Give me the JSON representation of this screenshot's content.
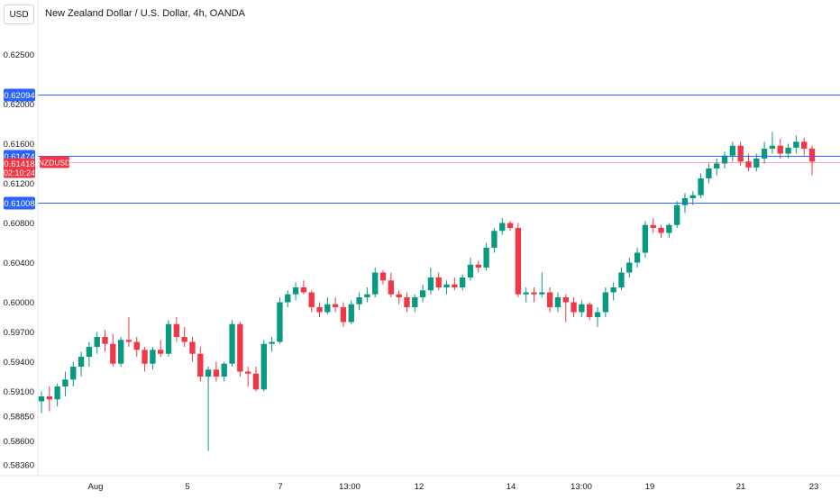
{
  "header": {
    "currency_label": "USD",
    "title": "New Zealand Dollar / U.S. Dollar, 4h, OANDA"
  },
  "chart_data": {
    "type": "candlestick",
    "symbol": "NZDUSD",
    "y_ticks": [
      "0.62500",
      "0.62000",
      "0.61600",
      "0.61200",
      "0.60800",
      "0.60400",
      "0.60000",
      "0.59700",
      "0.59400",
      "0.59100",
      "0.58850",
      "0.58600",
      "0.58360"
    ],
    "x_ticks": [
      "Aug",
      "5",
      "7",
      "13:00",
      "12",
      "14",
      "13:00",
      "19",
      "21",
      "23"
    ],
    "ylim": [
      0.5825,
      0.6305
    ],
    "horizontal_lines": [
      {
        "label": "0.62094",
        "value": 0.62094,
        "color": "#2962ff"
      },
      {
        "label": "0.61474",
        "value": 0.61474,
        "color": "#2962ff"
      },
      {
        "label": "0.61008",
        "value": 0.61008,
        "color": "#2962ff"
      }
    ],
    "current_price": {
      "label": "0.61418",
      "value": 0.61418,
      "countdown": "02:10:24",
      "symbol": "NZDUSD",
      "color": "#f23645"
    },
    "up_color": "#089981",
    "down_color": "#f23645",
    "candles": [
      [
        0.59,
        0.591,
        0.5888,
        0.5905
      ],
      [
        0.5905,
        0.5915,
        0.589,
        0.5902
      ],
      [
        0.5902,
        0.5918,
        0.5895,
        0.5915
      ],
      [
        0.5915,
        0.593,
        0.5905,
        0.5922
      ],
      [
        0.5922,
        0.594,
        0.5915,
        0.5935
      ],
      [
        0.5935,
        0.595,
        0.5925,
        0.5945
      ],
      [
        0.5945,
        0.596,
        0.5935,
        0.5955
      ],
      [
        0.5955,
        0.597,
        0.5948,
        0.5965
      ],
      [
        0.5965,
        0.5972,
        0.595,
        0.5958
      ],
      [
        0.5958,
        0.5968,
        0.5935,
        0.5938
      ],
      [
        0.5938,
        0.5965,
        0.5935,
        0.5962
      ],
      [
        0.5962,
        0.5985,
        0.5955,
        0.596
      ],
      [
        0.596,
        0.5965,
        0.5945,
        0.5952
      ],
      [
        0.5952,
        0.5955,
        0.593,
        0.5938
      ],
      [
        0.5938,
        0.5955,
        0.5932,
        0.5952
      ],
      [
        0.5952,
        0.5962,
        0.5945,
        0.5948
      ],
      [
        0.5948,
        0.5982,
        0.5945,
        0.5978
      ],
      [
        0.5978,
        0.5985,
        0.596,
        0.5965
      ],
      [
        0.5965,
        0.5975,
        0.5955,
        0.596
      ],
      [
        0.596,
        0.5965,
        0.594,
        0.5948
      ],
      [
        0.5948,
        0.5955,
        0.592,
        0.5925
      ],
      [
        0.5925,
        0.5935,
        0.585,
        0.5932
      ],
      [
        0.5932,
        0.594,
        0.592,
        0.5925
      ],
      [
        0.5925,
        0.594,
        0.592,
        0.5938
      ],
      [
        0.5938,
        0.5982,
        0.5935,
        0.5978
      ],
      [
        0.5978,
        0.598,
        0.5925,
        0.593
      ],
      [
        0.593,
        0.5935,
        0.5915,
        0.5928
      ],
      [
        0.5928,
        0.5935,
        0.591,
        0.5912
      ],
      [
        0.5912,
        0.5962,
        0.591,
        0.5958
      ],
      [
        0.5958,
        0.5965,
        0.595,
        0.596
      ],
      [
        0.596,
        0.6005,
        0.5958,
        0.6
      ],
      [
        0.6,
        0.6012,
        0.5995,
        0.6008
      ],
      [
        0.6008,
        0.602,
        0.6002,
        0.6015
      ],
      [
        0.6015,
        0.6022,
        0.6008,
        0.601
      ],
      [
        0.601,
        0.6012,
        0.599,
        0.5995
      ],
      [
        0.5995,
        0.6,
        0.5985,
        0.599
      ],
      [
        0.599,
        0.6005,
        0.5988,
        0.5998
      ],
      [
        0.5998,
        0.6005,
        0.599,
        0.5995
      ],
      [
        0.5995,
        0.6,
        0.5975,
        0.598
      ],
      [
        0.598,
        0.6002,
        0.5978,
        0.5998
      ],
      [
        0.5998,
        0.601,
        0.5992,
        0.6005
      ],
      [
        0.6005,
        0.6015,
        0.6,
        0.6008
      ],
      [
        0.6008,
        0.6035,
        0.6005,
        0.603
      ],
      [
        0.603,
        0.6032,
        0.6018,
        0.6022
      ],
      [
        0.6022,
        0.603,
        0.6005,
        0.6008
      ],
      [
        0.6008,
        0.6012,
        0.5998,
        0.6005
      ],
      [
        0.6005,
        0.601,
        0.599,
        0.5995
      ],
      [
        0.5995,
        0.6008,
        0.599,
        0.6005
      ],
      [
        0.6005,
        0.6018,
        0.6,
        0.6012
      ],
      [
        0.6012,
        0.6035,
        0.6008,
        0.6025
      ],
      [
        0.6025,
        0.603,
        0.6012,
        0.6015
      ],
      [
        0.6015,
        0.6022,
        0.6008,
        0.6018
      ],
      [
        0.6018,
        0.6025,
        0.6012,
        0.6015
      ],
      [
        0.6015,
        0.6028,
        0.6012,
        0.6025
      ],
      [
        0.6025,
        0.6045,
        0.6022,
        0.6038
      ],
      [
        0.6038,
        0.6042,
        0.603,
        0.6035
      ],
      [
        0.6035,
        0.606,
        0.6032,
        0.6055
      ],
      [
        0.6055,
        0.6075,
        0.605,
        0.6072
      ],
      [
        0.6072,
        0.6085,
        0.6068,
        0.608
      ],
      [
        0.608,
        0.6082,
        0.6072,
        0.6075
      ],
      [
        0.6075,
        0.608,
        0.6005,
        0.6008
      ],
      [
        0.6008,
        0.6015,
        0.6,
        0.601
      ],
      [
        0.601,
        0.6015,
        0.6,
        0.6008
      ],
      [
        0.6008,
        0.603,
        0.6005,
        0.601
      ],
      [
        0.601,
        0.6015,
        0.599,
        0.5995
      ],
      [
        0.5995,
        0.601,
        0.599,
        0.6005
      ],
      [
        0.6005,
        0.6008,
        0.598,
        0.6
      ],
      [
        0.6,
        0.6005,
        0.5985,
        0.599
      ],
      [
        0.599,
        0.6002,
        0.5985,
        0.5998
      ],
      [
        0.5998,
        0.6,
        0.5982,
        0.5985
      ],
      [
        0.5985,
        0.5995,
        0.5975,
        0.599
      ],
      [
        0.599,
        0.6015,
        0.5985,
        0.601
      ],
      [
        0.601,
        0.602,
        0.6002,
        0.6015
      ],
      [
        0.6015,
        0.6035,
        0.6012,
        0.603
      ],
      [
        0.603,
        0.6045,
        0.6025,
        0.604
      ],
      [
        0.604,
        0.6055,
        0.6035,
        0.605
      ],
      [
        0.605,
        0.6082,
        0.6045,
        0.6078
      ],
      [
        0.6078,
        0.6085,
        0.607,
        0.6075
      ],
      [
        0.6075,
        0.6078,
        0.6065,
        0.607
      ],
      [
        0.607,
        0.608,
        0.6065,
        0.6078
      ],
      [
        0.6078,
        0.6102,
        0.6075,
        0.6098
      ],
      [
        0.6098,
        0.611,
        0.609,
        0.6105
      ],
      [
        0.6105,
        0.6112,
        0.6098,
        0.6108
      ],
      [
        0.6108,
        0.613,
        0.6105,
        0.6125
      ],
      [
        0.6125,
        0.614,
        0.612,
        0.6135
      ],
      [
        0.6135,
        0.6145,
        0.6128,
        0.614
      ],
      [
        0.614,
        0.6152,
        0.6135,
        0.6148
      ],
      [
        0.6148,
        0.6162,
        0.6142,
        0.6158
      ],
      [
        0.6158,
        0.6162,
        0.6138,
        0.6142
      ],
      [
        0.6142,
        0.615,
        0.6132,
        0.6136
      ],
      [
        0.6136,
        0.615,
        0.6132,
        0.6145
      ],
      [
        0.6145,
        0.6162,
        0.614,
        0.6155
      ],
      [
        0.6155,
        0.6172,
        0.615,
        0.6158
      ],
      [
        0.6158,
        0.6165,
        0.6145,
        0.615
      ],
      [
        0.615,
        0.616,
        0.6145,
        0.6156
      ],
      [
        0.6156,
        0.6168,
        0.615,
        0.6162
      ],
      [
        0.6162,
        0.6166,
        0.6148,
        0.6155
      ],
      [
        0.6155,
        0.6158,
        0.6128,
        0.6142
      ]
    ]
  }
}
